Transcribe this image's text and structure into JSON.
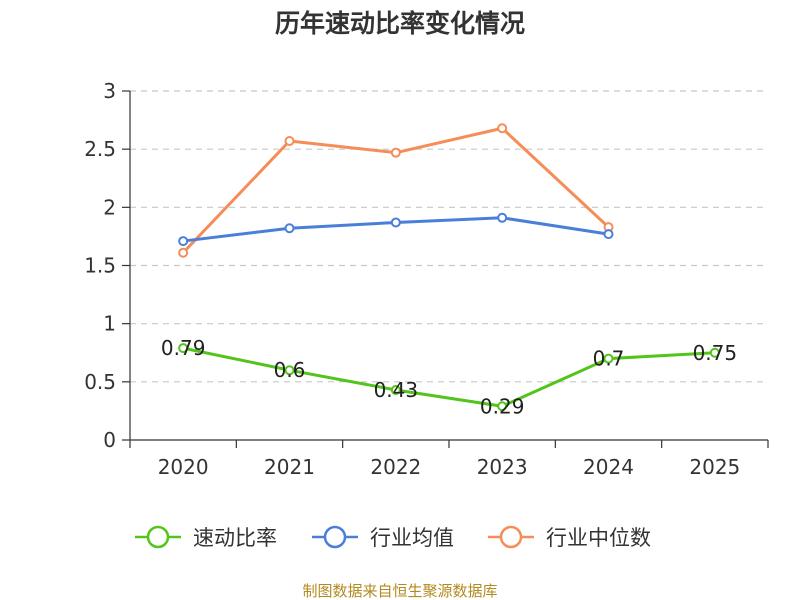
{
  "chart_data": {
    "type": "line",
    "title": "历年速动比率变化情况",
    "xlabel": "",
    "ylabel": "",
    "categories": [
      "2020",
      "2021",
      "2022",
      "2023",
      "2024",
      "2025"
    ],
    "ylim": [
      0,
      3
    ],
    "yticks": [
      "0",
      "0.5",
      "1",
      "1.5",
      "2",
      "2.5",
      "3"
    ],
    "grid": true,
    "legend_position": "bottom",
    "series": [
      {
        "name": "速动比率",
        "color": "#52c41a",
        "values": [
          0.79,
          0.6,
          0.43,
          0.29,
          0.7,
          0.75
        ],
        "labels": [
          "0.79",
          "0.6",
          "0.43",
          "0.29",
          "0.7",
          "0.75"
        ]
      },
      {
        "name": "行业均值",
        "color": "#4a7fd9",
        "values": [
          1.71,
          1.82,
          1.87,
          1.91,
          1.77,
          null
        ]
      },
      {
        "name": "行业中位数",
        "color": "#f58d58",
        "values": [
          1.61,
          2.57,
          2.47,
          2.68,
          1.83,
          null
        ]
      }
    ],
    "source": "制图数据来自恒生聚源数据库"
  }
}
